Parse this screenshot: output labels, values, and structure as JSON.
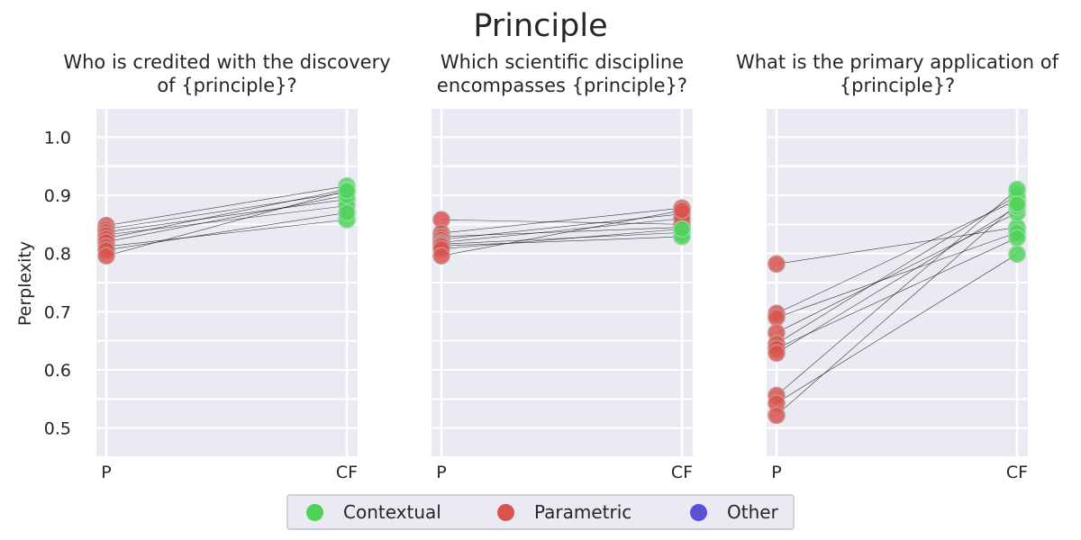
{
  "chart_data": {
    "type": "scatter",
    "title": "Principle",
    "ylabel": "Perplexity",
    "ylim": [
      0.45,
      1.05
    ],
    "yticks": [
      "0.5",
      "0.6",
      "0.7",
      "0.8",
      "0.9",
      "1.0"
    ],
    "xticks": [
      "P",
      "CF"
    ],
    "grid": true,
    "legend": {
      "placement": "bottom-center",
      "entries": [
        {
          "label": "Contextual",
          "color": "#4fd25a"
        },
        {
          "label": "Parametric",
          "color": "#d9534f"
        },
        {
          "label": "Other",
          "color": "#5b4fd6"
        }
      ]
    },
    "panels": [
      {
        "title": "Who is credited with the discovery\nof {principle}?",
        "pairs": [
          {
            "p": 0.848,
            "cf": 0.916,
            "cf_class": "Contextual"
          },
          {
            "p": 0.842,
            "cf": 0.905,
            "cf_class": "Contextual"
          },
          {
            "p": 0.837,
            "cf": 0.893,
            "cf_class": "Contextual"
          },
          {
            "p": 0.832,
            "cf": 0.882,
            "cf_class": "Contextual"
          },
          {
            "p": 0.826,
            "cf": 0.91,
            "cf_class": "Contextual"
          },
          {
            "p": 0.82,
            "cf": 0.9,
            "cf_class": "Contextual"
          },
          {
            "p": 0.812,
            "cf": 0.858,
            "cf_class": "Contextual"
          },
          {
            "p": 0.806,
            "cf": 0.87,
            "cf_class": "Contextual"
          },
          {
            "p": 0.796,
            "cf": 0.908,
            "cf_class": "Contextual"
          }
        ]
      },
      {
        "title": "Which scientific discipline\nencompasses {principle}?",
        "pairs": [
          {
            "p": 0.858,
            "cf": 0.85,
            "cf_class": "Parametric"
          },
          {
            "p": 0.835,
            "cf": 0.878,
            "cf_class": "Parametric"
          },
          {
            "p": 0.829,
            "cf": 0.845,
            "cf_class": "Parametric"
          },
          {
            "p": 0.824,
            "cf": 0.868,
            "cf_class": "Parametric"
          },
          {
            "p": 0.819,
            "cf": 0.86,
            "cf_class": "Parametric"
          },
          {
            "p": 0.816,
            "cf": 0.836,
            "cf_class": "Contextual"
          },
          {
            "p": 0.813,
            "cf": 0.829,
            "cf_class": "Contextual"
          },
          {
            "p": 0.808,
            "cf": 0.842,
            "cf_class": "Contextual"
          },
          {
            "p": 0.796,
            "cf": 0.874,
            "cf_class": "Parametric"
          }
        ]
      },
      {
        "title": "What is the primary application of\n{principle}?",
        "pairs": [
          {
            "p": 0.782,
            "cf": 0.845,
            "cf_class": "Contextual"
          },
          {
            "p": 0.697,
            "cf": 0.892,
            "cf_class": "Contextual"
          },
          {
            "p": 0.69,
            "cf": 0.836,
            "cf_class": "Contextual"
          },
          {
            "p": 0.664,
            "cf": 0.87,
            "cf_class": "Contextual"
          },
          {
            "p": 0.645,
            "cf": 0.9,
            "cf_class": "Contextual"
          },
          {
            "p": 0.637,
            "cf": 0.827,
            "cf_class": "Contextual"
          },
          {
            "p": 0.629,
            "cf": 0.88,
            "cf_class": "Contextual"
          },
          {
            "p": 0.556,
            "cf": 0.91,
            "cf_class": "Contextual"
          },
          {
            "p": 0.543,
            "cf": 0.799,
            "cf_class": "Contextual"
          },
          {
            "p": 0.522,
            "cf": 0.885,
            "cf_class": "Contextual"
          }
        ]
      }
    ]
  }
}
